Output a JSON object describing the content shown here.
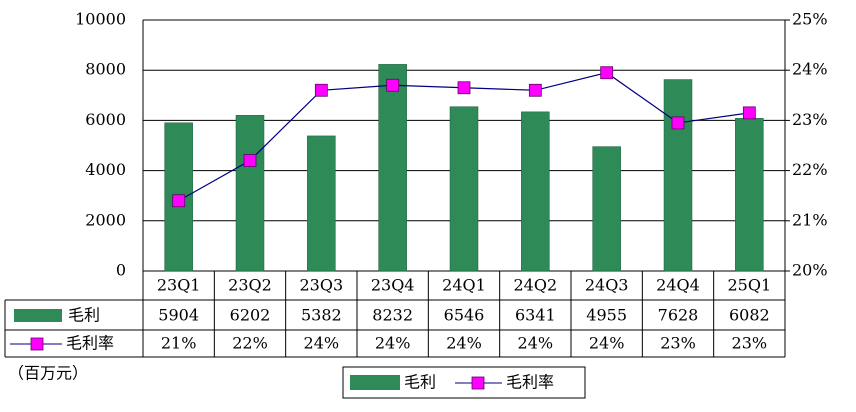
{
  "chart_data": {
    "type": "bar",
    "categories": [
      "23Q1",
      "23Q2",
      "23Q3",
      "23Q4",
      "24Q1",
      "24Q2",
      "24Q3",
      "24Q4",
      "25Q1"
    ],
    "series": [
      {
        "name": "毛利",
        "type": "bar",
        "color": "#2e8b57",
        "values": [
          5904,
          6202,
          5382,
          8232,
          6546,
          6341,
          4955,
          7628,
          6082
        ]
      },
      {
        "name": "毛利率",
        "type": "line",
        "axis": "y2",
        "color": "#ff00ff",
        "line_color": "#000080",
        "values": [
          21.4,
          22.2,
          23.6,
          23.7,
          23.65,
          23.6,
          23.95,
          22.95,
          23.15
        ],
        "value_labels": [
          "21%",
          "22%",
          "24%",
          "24%",
          "24%",
          "24%",
          "24%",
          "23%",
          "23%"
        ]
      }
    ],
    "ylim": [
      0,
      10000
    ],
    "yticks": [
      0,
      2000,
      4000,
      6000,
      8000,
      10000
    ],
    "y2lim": [
      20,
      25
    ],
    "y2ticks": [
      {
        "value": 20,
        "label": "20%"
      },
      {
        "value": 21,
        "label": "21%"
      },
      {
        "value": 22,
        "label": "22%"
      },
      {
        "value": 23,
        "label": "23%"
      },
      {
        "value": 24,
        "label": "24%"
      },
      {
        "value": 25,
        "label": "25%"
      }
    ],
    "grid": true,
    "unit_label": "（百万元）"
  }
}
